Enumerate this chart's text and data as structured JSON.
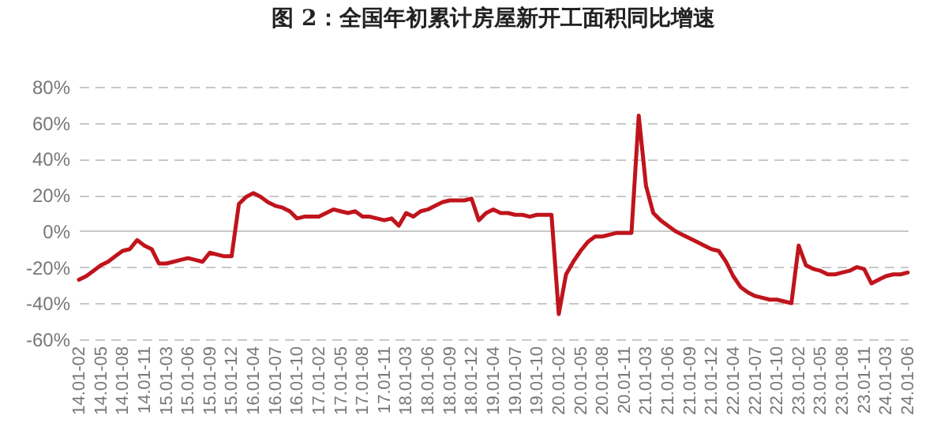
{
  "chart_data": {
    "type": "line",
    "title": "图 2：全国年初累计房屋新开工面积同比增速",
    "categories": [
      "14.01-02",
      null,
      null,
      "14.01-05",
      null,
      null,
      "14.01-08",
      null,
      null,
      "14.01-11",
      null,
      null,
      "15.01-03",
      null,
      null,
      "15.01-06",
      null,
      null,
      "15.01-09",
      null,
      null,
      "15.01-12",
      null,
      null,
      "16.01-04",
      null,
      null,
      "16.01-07",
      null,
      null,
      "16.01-10",
      null,
      null,
      "17.01-02",
      null,
      null,
      "17.01-05",
      null,
      null,
      "17.01-08",
      null,
      null,
      "17.01-11",
      null,
      null,
      "18.01-03",
      null,
      null,
      "18.01-06",
      null,
      null,
      "18.01-09",
      null,
      null,
      "18.01-12",
      null,
      null,
      "19.01-04",
      null,
      null,
      "19.01-07",
      null,
      null,
      "19.01-10",
      null,
      null,
      "20.01-02",
      null,
      null,
      "20.01-05",
      null,
      null,
      "20.01-08",
      null,
      null,
      "20.01-11",
      null,
      null,
      "21.01-03",
      null,
      null,
      "21.01-06",
      null,
      null,
      "21.01-09",
      null,
      null,
      "21.01-12",
      null,
      null,
      "22.01-04",
      null,
      null,
      "22.01-07",
      null,
      null,
      "22.01-10",
      null,
      null,
      "23.01-02",
      null,
      null,
      "23.01-05",
      null,
      null,
      "23.01-08",
      null,
      null,
      "23.01-11",
      null,
      null,
      "24.01-03",
      null,
      null,
      "24.01-06"
    ],
    "series": [
      {
        "color": "#c0141c",
        "values": [
          -27,
          -25,
          -22,
          -19,
          -17,
          -14,
          -11,
          -10,
          -5,
          -8,
          -10,
          -18,
          -18,
          -17,
          -16,
          -15,
          -16,
          -17,
          -12,
          -13,
          -14,
          -14,
          15,
          19,
          21,
          19,
          16,
          14,
          13,
          11,
          7,
          8,
          8,
          8,
          10,
          12,
          11,
          10,
          11,
          8,
          8,
          7,
          6,
          7,
          3,
          10,
          8,
          11,
          12,
          14,
          16,
          17,
          17,
          17,
          18,
          6,
          10,
          12,
          10,
          10,
          9,
          9,
          8,
          9,
          9,
          9,
          -46,
          -24,
          -17,
          -11,
          -6,
          -3,
          -3,
          -2,
          -1,
          -1,
          -1,
          64,
          25,
          10,
          6,
          3,
          0,
          -2,
          -4,
          -6,
          -8,
          -10,
          -11,
          -17,
          -25,
          -31,
          -34,
          -36,
          -37,
          -38,
          -38,
          -39,
          -40,
          -8,
          -19,
          -21,
          -22,
          -24,
          -24,
          -23,
          -22,
          -20,
          -21,
          -29,
          -27,
          -25,
          -24,
          -24,
          -23
        ]
      }
    ],
    "ylim": [
      -60,
      80
    ],
    "yticks": [
      {
        "value": -60,
        "label": "-60%"
      },
      {
        "value": -40,
        "label": "-40%"
      },
      {
        "value": -20,
        "label": "-20%"
      },
      {
        "value": 0,
        "label": "0%"
      },
      {
        "value": 20,
        "label": "20%"
      },
      {
        "value": 40,
        "label": "40%"
      },
      {
        "value": 60,
        "label": "60%"
      },
      {
        "value": 80,
        "label": "80%"
      }
    ],
    "grid": "y",
    "legend": false,
    "marker": "none",
    "line_style": "solid"
  }
}
